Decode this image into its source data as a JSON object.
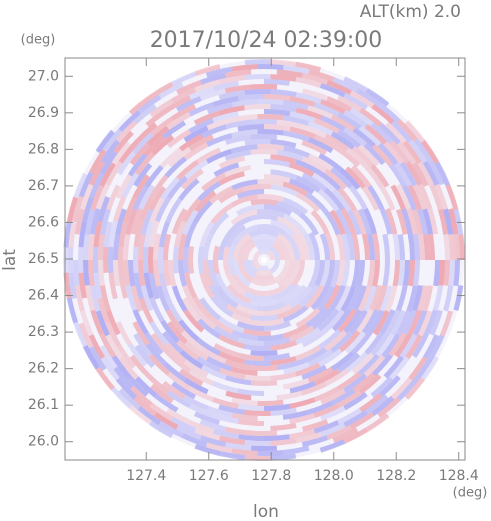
{
  "chart_data": {
    "type": "ppi",
    "title": "2017/10/24 02:39:00",
    "subtitle": "ALT(km) 2.0",
    "x_label": "lon",
    "x_unit": "(deg)",
    "y_label": "lat",
    "y_unit": "(deg)",
    "xlim": [
      127.14,
      128.42
    ],
    "xticks": [
      127.4,
      127.6,
      127.8,
      {
        "value": 128,
        "label": "128.0"
      },
      128.2,
      128.4
    ],
    "ylim": [
      25.95,
      27.05
    ],
    "yticks": [
      {
        "value": 26,
        "label": "26.0"
      },
      26.1,
      26.2,
      26.3,
      26.4,
      26.5,
      26.6,
      26.7,
      26.8,
      26.9,
      {
        "value": 27,
        "label": "27.0"
      }
    ]
  }
}
